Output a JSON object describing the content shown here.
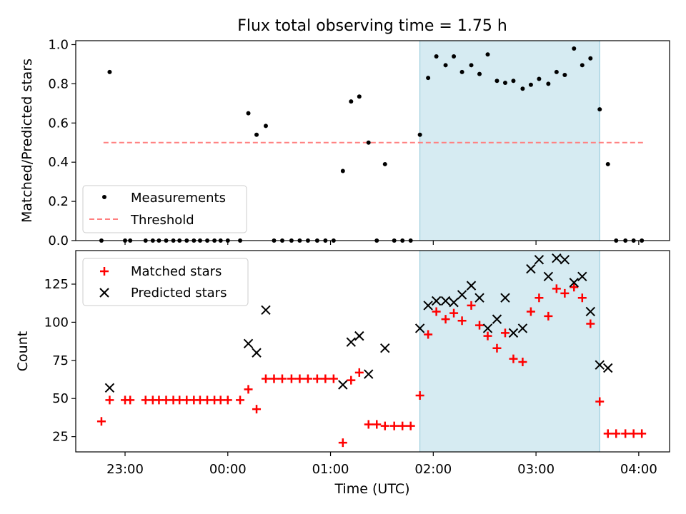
{
  "chart_data": [
    {
      "type": "scatter",
      "title": "Flux total observing time = 1.75 h",
      "xlabel": "",
      "ylabel": "Matched/Predicted stars",
      "xlim_hours": [
        22.52,
        28.3
      ],
      "ylim": [
        0,
        1.02
      ],
      "yticks": [
        0.0,
        0.2,
        0.4,
        0.6,
        0.8,
        1.0
      ],
      "ytick_labels": [
        "0.0",
        "0.2",
        "0.4",
        "0.6",
        "0.8",
        "1.0"
      ],
      "legend": {
        "position": "lower-left",
        "entries": [
          "Measurements",
          "Threshold"
        ]
      },
      "shaded_interval_hours": [
        25.87,
        27.62
      ],
      "threshold": {
        "value": 0.5,
        "x_range_hours": [
          22.79,
          28.05
        ],
        "color": "#ff8080"
      },
      "series": [
        {
          "name": "Measurements",
          "color": "#000000",
          "points": [
            [
              22.77,
              0.0
            ],
            [
              22.85,
              0.86
            ],
            [
              23.0,
              0.0
            ],
            [
              23.05,
              0.0
            ],
            [
              23.2,
              0.0
            ],
            [
              23.27,
              0.0
            ],
            [
              23.33,
              0.0
            ],
            [
              23.4,
              0.0
            ],
            [
              23.47,
              0.0
            ],
            [
              23.53,
              0.0
            ],
            [
              23.6,
              0.0
            ],
            [
              23.67,
              0.0
            ],
            [
              23.73,
              0.0
            ],
            [
              23.8,
              0.0
            ],
            [
              23.87,
              0.0
            ],
            [
              23.93,
              0.0
            ],
            [
              24.0,
              0.0
            ],
            [
              24.12,
              0.0
            ],
            [
              24.2,
              0.65
            ],
            [
              24.28,
              0.54
            ],
            [
              24.37,
              0.585
            ],
            [
              24.45,
              0.0
            ],
            [
              24.53,
              0.0
            ],
            [
              24.62,
              0.0
            ],
            [
              24.7,
              0.0
            ],
            [
              24.78,
              0.0
            ],
            [
              24.87,
              0.0
            ],
            [
              24.95,
              0.0
            ],
            [
              25.03,
              0.0
            ],
            [
              25.12,
              0.355
            ],
            [
              25.2,
              0.71
            ],
            [
              25.28,
              0.735
            ],
            [
              25.37,
              0.5
            ],
            [
              25.45,
              0.0
            ],
            [
              25.53,
              0.39
            ],
            [
              25.62,
              0.0
            ],
            [
              25.7,
              0.0
            ],
            [
              25.78,
              0.0
            ],
            [
              25.87,
              0.54
            ],
            [
              25.95,
              0.83
            ],
            [
              26.03,
              0.94
            ],
            [
              26.12,
              0.895
            ],
            [
              26.2,
              0.94
            ],
            [
              26.28,
              0.86
            ],
            [
              26.37,
              0.895
            ],
            [
              26.45,
              0.85
            ],
            [
              26.53,
              0.95
            ],
            [
              26.62,
              0.815
            ],
            [
              26.7,
              0.805
            ],
            [
              26.78,
              0.815
            ],
            [
              26.87,
              0.775
            ],
            [
              26.95,
              0.795
            ],
            [
              27.03,
              0.825
            ],
            [
              27.12,
              0.8
            ],
            [
              27.2,
              0.86
            ],
            [
              27.28,
              0.845
            ],
            [
              27.37,
              0.98
            ],
            [
              27.45,
              0.895
            ],
            [
              27.53,
              0.93
            ],
            [
              27.62,
              0.67
            ],
            [
              27.7,
              0.39
            ],
            [
              27.78,
              0.0
            ],
            [
              27.87,
              0.0
            ],
            [
              27.95,
              0.0
            ],
            [
              28.03,
              0.0
            ]
          ]
        }
      ]
    },
    {
      "type": "scatter",
      "title": "",
      "xlabel": "Time (UTC)",
      "ylabel": "Count",
      "xlim_hours": [
        22.52,
        28.3
      ],
      "ylim": [
        15,
        147
      ],
      "yticks": [
        25,
        50,
        75,
        100,
        125
      ],
      "ytick_labels": [
        "25",
        "50",
        "75",
        "100",
        "125"
      ],
      "xticks_hours": [
        23,
        24,
        25,
        26,
        27,
        28
      ],
      "xtick_labels": [
        "23:00",
        "00:00",
        "01:00",
        "02:00",
        "03:00",
        "04:00"
      ],
      "legend": {
        "position": "top-left",
        "entries": [
          "Matched stars",
          "Predicted stars"
        ]
      },
      "shaded_interval_hours": [
        25.87,
        27.62
      ],
      "series": [
        {
          "name": "Matched stars",
          "marker": "+",
          "color": "#ff0000",
          "points": [
            [
              22.77,
              35
            ],
            [
              22.85,
              49
            ],
            [
              23.0,
              49
            ],
            [
              23.05,
              49
            ],
            [
              23.2,
              49
            ],
            [
              23.27,
              49
            ],
            [
              23.33,
              49
            ],
            [
              23.4,
              49
            ],
            [
              23.47,
              49
            ],
            [
              23.53,
              49
            ],
            [
              23.6,
              49
            ],
            [
              23.67,
              49
            ],
            [
              23.73,
              49
            ],
            [
              23.8,
              49
            ],
            [
              23.87,
              49
            ],
            [
              23.93,
              49
            ],
            [
              24.0,
              49
            ],
            [
              24.12,
              49
            ],
            [
              24.2,
              56
            ],
            [
              24.28,
              43
            ],
            [
              24.37,
              63
            ],
            [
              24.45,
              63
            ],
            [
              24.53,
              63
            ],
            [
              24.62,
              63
            ],
            [
              24.7,
              63
            ],
            [
              24.78,
              63
            ],
            [
              24.87,
              63
            ],
            [
              24.95,
              63
            ],
            [
              25.03,
              63
            ],
            [
              25.12,
              21
            ],
            [
              25.2,
              62
            ],
            [
              25.28,
              67
            ],
            [
              25.37,
              33
            ],
            [
              25.45,
              33
            ],
            [
              25.53,
              32
            ],
            [
              25.62,
              32
            ],
            [
              25.7,
              32
            ],
            [
              25.78,
              32
            ],
            [
              25.87,
              52
            ],
            [
              25.95,
              92
            ],
            [
              26.03,
              107
            ],
            [
              26.12,
              102
            ],
            [
              26.2,
              106
            ],
            [
              26.28,
              101
            ],
            [
              26.37,
              111
            ],
            [
              26.45,
              98
            ],
            [
              26.53,
              91
            ],
            [
              26.62,
              83
            ],
            [
              26.7,
              93
            ],
            [
              26.78,
              76
            ],
            [
              26.87,
              74
            ],
            [
              26.95,
              107
            ],
            [
              27.03,
              116
            ],
            [
              27.12,
              104
            ],
            [
              27.2,
              122
            ],
            [
              27.28,
              119
            ],
            [
              27.37,
              123
            ],
            [
              27.45,
              116
            ],
            [
              27.53,
              99
            ],
            [
              27.62,
              48
            ],
            [
              27.7,
              27
            ],
            [
              27.78,
              27
            ],
            [
              27.87,
              27
            ],
            [
              27.95,
              27
            ],
            [
              28.03,
              27
            ]
          ]
        },
        {
          "name": "Predicted stars",
          "marker": "x",
          "color": "#000000",
          "points": [
            [
              22.85,
              57
            ],
            [
              24.2,
              86
            ],
            [
              24.28,
              80
            ],
            [
              24.37,
              108
            ],
            [
              25.12,
              59
            ],
            [
              25.2,
              87
            ],
            [
              25.28,
              91
            ],
            [
              25.37,
              66
            ],
            [
              25.53,
              83
            ],
            [
              25.87,
              96
            ],
            [
              25.95,
              111
            ],
            [
              26.03,
              114
            ],
            [
              26.12,
              114
            ],
            [
              26.2,
              113
            ],
            [
              26.28,
              118
            ],
            [
              26.37,
              124
            ],
            [
              26.45,
              116
            ],
            [
              26.53,
              96
            ],
            [
              26.62,
              102
            ],
            [
              26.7,
              116
            ],
            [
              26.78,
              93
            ],
            [
              26.87,
              96
            ],
            [
              26.95,
              135
            ],
            [
              27.03,
              141
            ],
            [
              27.12,
              130
            ],
            [
              27.2,
              142
            ],
            [
              27.28,
              141
            ],
            [
              27.37,
              126
            ],
            [
              27.45,
              130
            ],
            [
              27.53,
              107
            ],
            [
              27.62,
              72
            ],
            [
              27.7,
              70
            ]
          ]
        }
      ]
    }
  ]
}
